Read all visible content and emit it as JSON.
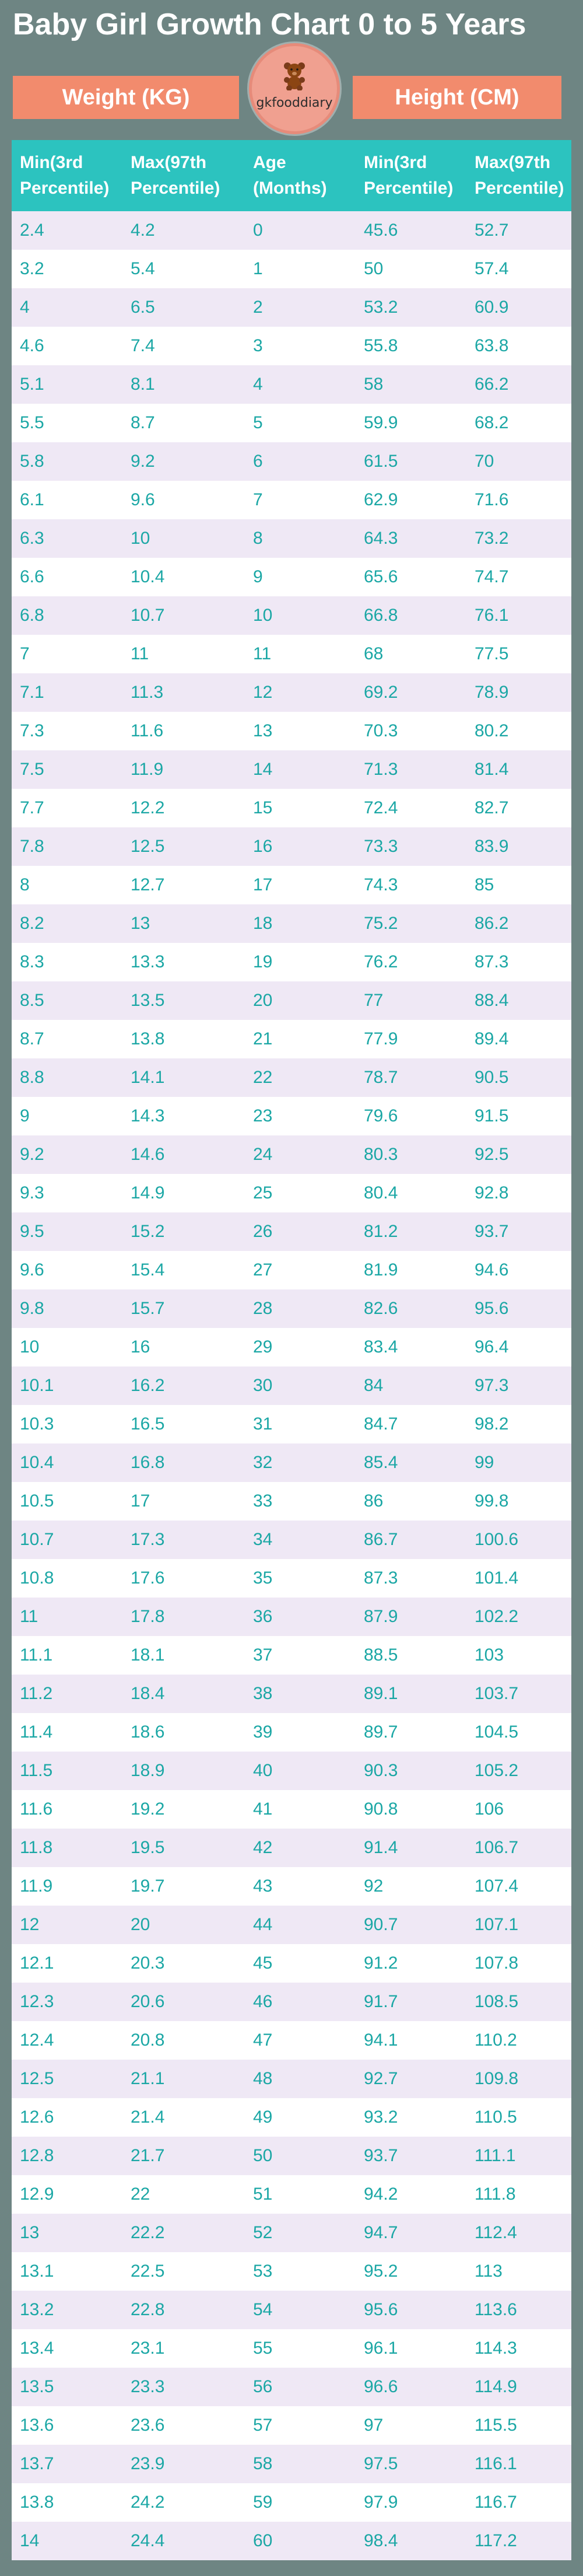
{
  "page": {
    "title": "Baby Girl Growth Chart 0 to 5 Years",
    "weight_tab": "Weight (KG)",
    "height_tab": "Height (CM)",
    "logo_text": "gkfooddiary",
    "logo_icon": "teddy-bear-icon"
  },
  "colors": {
    "background": "#6e8583",
    "tab": "#f28b6d",
    "header": "#2cc3bf",
    "cell_text": "#1ba7a5",
    "row_alt": "#efe8f5"
  },
  "table": {
    "headers": [
      [
        "Min(3rd",
        "Percentile)"
      ],
      [
        "Max(97th",
        "Percentile)"
      ],
      [
        "Age",
        "(Months)"
      ],
      [
        "Min(3rd",
        "Percentile)"
      ],
      [
        "Max(97th",
        "Percentile)"
      ]
    ],
    "rows": [
      [
        "2.4",
        "4.2",
        "0",
        "45.6",
        "52.7"
      ],
      [
        "3.2",
        "5.4",
        "1",
        "50",
        "57.4"
      ],
      [
        "4",
        "6.5",
        "2",
        "53.2",
        "60.9"
      ],
      [
        "4.6",
        "7.4",
        "3",
        "55.8",
        "63.8"
      ],
      [
        "5.1",
        "8.1",
        "4",
        "58",
        "66.2"
      ],
      [
        "5.5",
        "8.7",
        "5",
        "59.9",
        "68.2"
      ],
      [
        "5.8",
        "9.2",
        "6",
        "61.5",
        "70"
      ],
      [
        "6.1",
        "9.6",
        "7",
        "62.9",
        "71.6"
      ],
      [
        "6.3",
        "10",
        "8",
        "64.3",
        "73.2"
      ],
      [
        "6.6",
        "10.4",
        "9",
        "65.6",
        "74.7"
      ],
      [
        "6.8",
        "10.7",
        "10",
        "66.8",
        "76.1"
      ],
      [
        "7",
        "11",
        "11",
        "68",
        "77.5"
      ],
      [
        "7.1",
        "11.3",
        "12",
        "69.2",
        "78.9"
      ],
      [
        "7.3",
        "11.6",
        "13",
        "70.3",
        "80.2"
      ],
      [
        "7.5",
        "11.9",
        "14",
        "71.3",
        "81.4"
      ],
      [
        "7.7",
        "12.2",
        "15",
        "72.4",
        "82.7"
      ],
      [
        "7.8",
        "12.5",
        "16",
        "73.3",
        "83.9"
      ],
      [
        "8",
        "12.7",
        "17",
        "74.3",
        "85"
      ],
      [
        "8.2",
        "13",
        "18",
        "75.2",
        "86.2"
      ],
      [
        "8.3",
        "13.3",
        "19",
        "76.2",
        "87.3"
      ],
      [
        "8.5",
        "13.5",
        "20",
        "77",
        "88.4"
      ],
      [
        "8.7",
        "13.8",
        "21",
        "77.9",
        "89.4"
      ],
      [
        "8.8",
        "14.1",
        "22",
        "78.7",
        "90.5"
      ],
      [
        "9",
        "14.3",
        "23",
        "79.6",
        "91.5"
      ],
      [
        "9.2",
        "14.6",
        "24",
        "80.3",
        "92.5"
      ],
      [
        "9.3",
        "14.9",
        "25",
        "80.4",
        "92.8"
      ],
      [
        "9.5",
        "15.2",
        "26",
        "81.2",
        "93.7"
      ],
      [
        "9.6",
        "15.4",
        "27",
        "81.9",
        "94.6"
      ],
      [
        "9.8",
        "15.7",
        "28",
        "82.6",
        "95.6"
      ],
      [
        "10",
        "16",
        "29",
        "83.4",
        "96.4"
      ],
      [
        "10.1",
        "16.2",
        "30",
        "84",
        "97.3"
      ],
      [
        "10.3",
        "16.5",
        "31",
        "84.7",
        "98.2"
      ],
      [
        "10.4",
        "16.8",
        "32",
        "85.4",
        "99"
      ],
      [
        "10.5",
        "17",
        "33",
        "86",
        "99.8"
      ],
      [
        "10.7",
        "17.3",
        "34",
        "86.7",
        "100.6"
      ],
      [
        "10.8",
        "17.6",
        "35",
        "87.3",
        "101.4"
      ],
      [
        "11",
        "17.8",
        "36",
        "87.9",
        "102.2"
      ],
      [
        "11.1",
        "18.1",
        "37",
        "88.5",
        "103"
      ],
      [
        "11.2",
        "18.4",
        "38",
        "89.1",
        "103.7"
      ],
      [
        "11.4",
        "18.6",
        "39",
        "89.7",
        "104.5"
      ],
      [
        "11.5",
        "18.9",
        "40",
        "90.3",
        "105.2"
      ],
      [
        "11.6",
        "19.2",
        "41",
        "90.8",
        "106"
      ],
      [
        "11.8",
        "19.5",
        "42",
        "91.4",
        "106.7"
      ],
      [
        "11.9",
        "19.7",
        "43",
        "92",
        "107.4"
      ],
      [
        "12",
        "20",
        "44",
        "90.7",
        "107.1"
      ],
      [
        "12.1",
        "20.3",
        "45",
        "91.2",
        "107.8"
      ],
      [
        "12.3",
        "20.6",
        "46",
        "91.7",
        "108.5"
      ],
      [
        "12.4",
        "20.8",
        "47",
        "94.1",
        "110.2"
      ],
      [
        "12.5",
        "21.1",
        "48",
        "92.7",
        "109.8"
      ],
      [
        "12.6",
        "21.4",
        "49",
        "93.2",
        "110.5"
      ],
      [
        "12.8",
        "21.7",
        "50",
        "93.7",
        "111.1"
      ],
      [
        "12.9",
        "22",
        "51",
        "94.2",
        "111.8"
      ],
      [
        "13",
        "22.2",
        "52",
        "94.7",
        "112.4"
      ],
      [
        "13.1",
        "22.5",
        "53",
        "95.2",
        "113"
      ],
      [
        "13.2",
        "22.8",
        "54",
        "95.6",
        "113.6"
      ],
      [
        "13.4",
        "23.1",
        "55",
        "96.1",
        "114.3"
      ],
      [
        "13.5",
        "23.3",
        "56",
        "96.6",
        "114.9"
      ],
      [
        "13.6",
        "23.6",
        "57",
        "97",
        "115.5"
      ],
      [
        "13.7",
        "23.9",
        "58",
        "97.5",
        "116.1"
      ],
      [
        "13.8",
        "24.2",
        "59",
        "97.9",
        "116.7"
      ],
      [
        "14",
        "24.4",
        "60",
        "98.4",
        "117.2"
      ]
    ]
  }
}
